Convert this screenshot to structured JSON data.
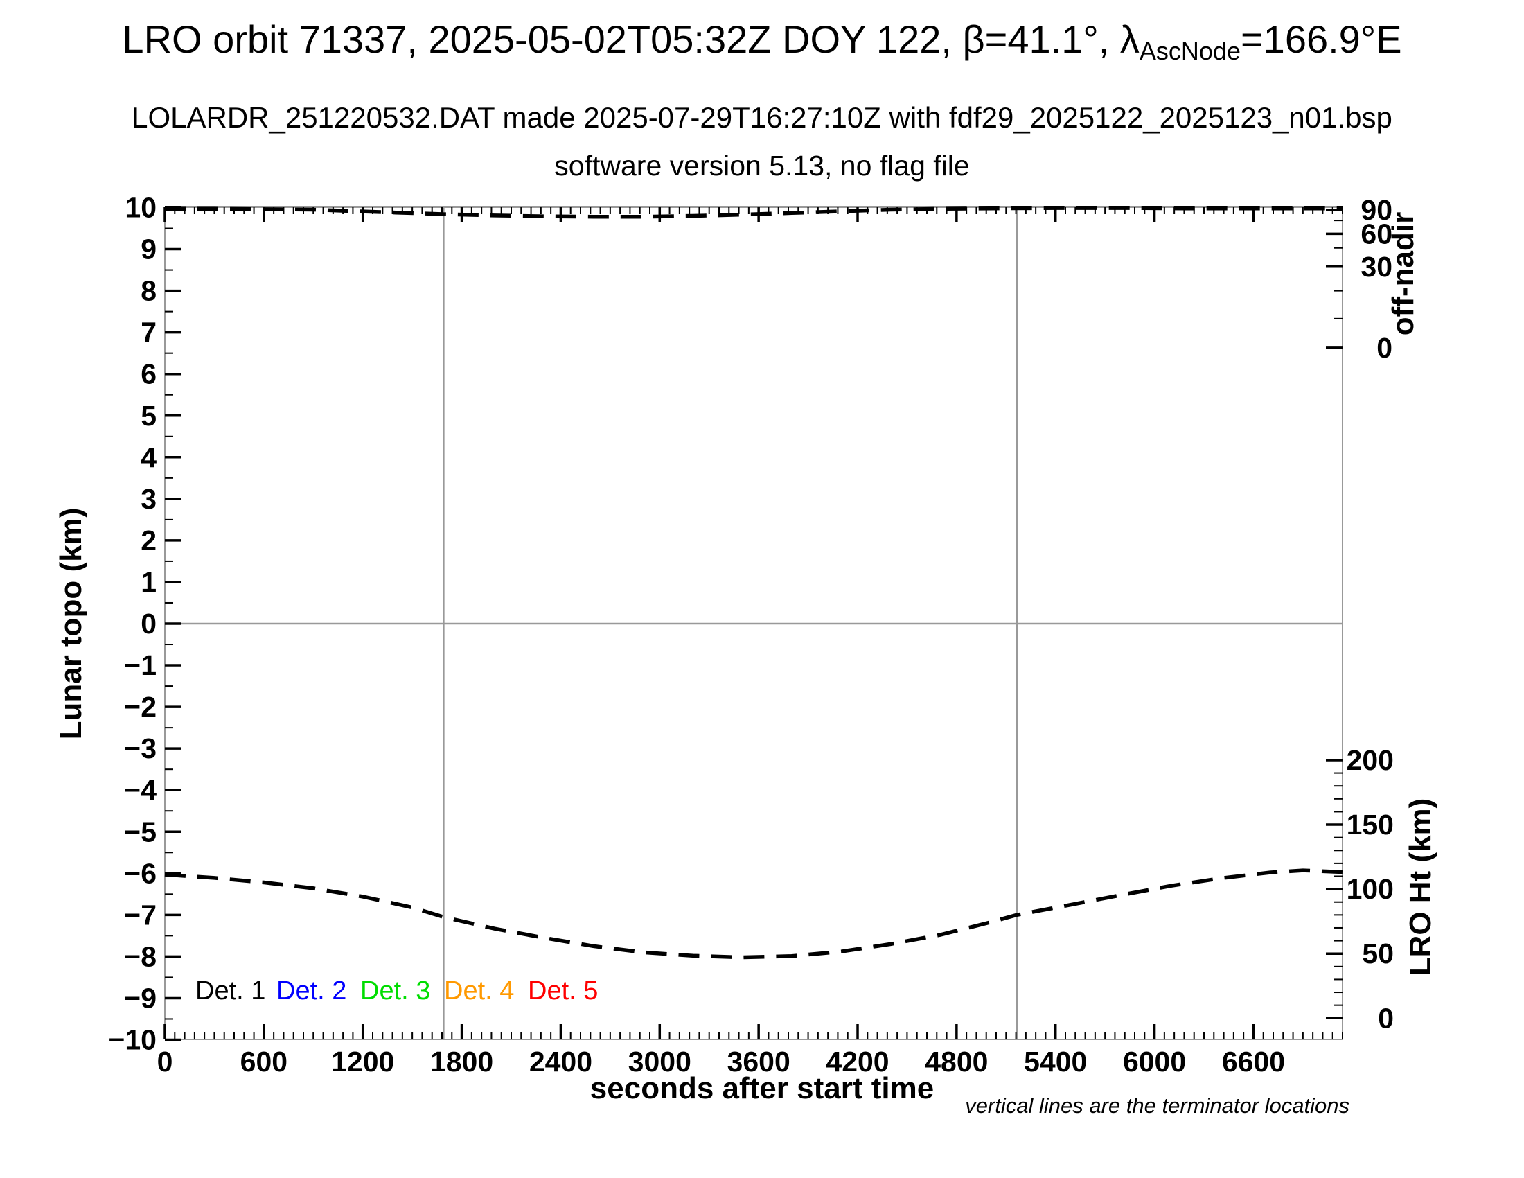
{
  "chart_data": {
    "type": "line",
    "title": {
      "pre": "LRO orbit 71337, 2025-05-02T05:32Z DOY 122, β=41.1°, λ",
      "sub": "AscNode",
      "post": "=166.9°E"
    },
    "subtitle": "LOLARDR_251220532.DAT made 2025-07-29T16:27:10Z with fdf29_2025122_2025123_n01.bsp",
    "subtitle2": "software version 5.13, no flag file",
    "xlabel": "seconds after start time",
    "note": "vertical lines are the terminator locations",
    "x_axis": {
      "min": 0,
      "max": 7140,
      "major": 600,
      "minor": 60,
      "last_labeled_tick": 6600
    },
    "left_axis": {
      "label": "Lunar topo (km)",
      "min": -10,
      "max": 10,
      "major": 1,
      "minor": 0.5
    },
    "right_axis_offnadir": {
      "label": "off-nadir",
      "ticks": [
        {
          "label": "90",
          "topo": 9.94
        },
        {
          "label": "60",
          "topo": 9.37
        },
        {
          "label": "30",
          "topo": 8.58
        },
        {
          "label": "0",
          "topo": 6.63
        }
      ],
      "minor_topo": [
        9.69,
        9.03,
        8.0,
        7.33
      ]
    },
    "right_axis_lro_ht": {
      "label": "LRO Ht (km)",
      "ticks": [
        {
          "label": "200",
          "topo": -3.28
        },
        {
          "label": "150",
          "topo": -4.83
        },
        {
          "label": "100",
          "topo": -6.38
        },
        {
          "label": "50",
          "topo": -7.93
        },
        {
          "label": "0",
          "topo": -9.48
        }
      ],
      "minor_step_topo": 0.31
    },
    "terminator_lines_sec": [
      1690,
      5165
    ],
    "grid_color": "#999999",
    "series": [
      {
        "name": "upper dashed curve (off-nadir trace)",
        "color": "#000000",
        "dash": [
          30,
          17
        ],
        "points_t_topo": [
          [
            0,
            9.97
          ],
          [
            300,
            9.97
          ],
          [
            600,
            9.96
          ],
          [
            900,
            9.95
          ],
          [
            1100,
            9.92
          ],
          [
            1400,
            9.88
          ],
          [
            1700,
            9.84
          ],
          [
            2000,
            9.81
          ],
          [
            2300,
            9.79
          ],
          [
            2600,
            9.78
          ],
          [
            2900,
            9.78
          ],
          [
            3200,
            9.8
          ],
          [
            3500,
            9.83
          ],
          [
            3800,
            9.87
          ],
          [
            4100,
            9.91
          ],
          [
            4400,
            9.95
          ],
          [
            4700,
            9.97
          ],
          [
            5000,
            9.98
          ],
          [
            5400,
            9.99
          ],
          [
            5800,
            9.99
          ],
          [
            6200,
            9.98
          ],
          [
            6600,
            9.98
          ],
          [
            7140,
            9.98
          ]
        ]
      },
      {
        "name": "lower dashed curve (LRO height, ~110 km down to ~48 km and back)",
        "color": "#000000",
        "dash": [
          30,
          17
        ],
        "points_t_topo": [
          [
            0,
            -6.03
          ],
          [
            300,
            -6.11
          ],
          [
            600,
            -6.22
          ],
          [
            900,
            -6.36
          ],
          [
            1200,
            -6.56
          ],
          [
            1500,
            -6.82
          ],
          [
            1690,
            -7.05
          ],
          [
            2000,
            -7.33
          ],
          [
            2300,
            -7.55
          ],
          [
            2600,
            -7.75
          ],
          [
            2900,
            -7.9
          ],
          [
            3200,
            -7.98
          ],
          [
            3500,
            -8.02
          ],
          [
            3800,
            -7.99
          ],
          [
            4100,
            -7.88
          ],
          [
            4400,
            -7.7
          ],
          [
            4700,
            -7.48
          ],
          [
            5000,
            -7.18
          ],
          [
            5165,
            -7.0
          ],
          [
            5500,
            -6.75
          ],
          [
            5800,
            -6.52
          ],
          [
            6100,
            -6.3
          ],
          [
            6400,
            -6.12
          ],
          [
            6700,
            -5.98
          ],
          [
            6900,
            -5.93
          ],
          [
            7140,
            -5.97
          ]
        ]
      }
    ],
    "legend": [
      {
        "label": "Det. 1",
        "color": "#000000"
      },
      {
        "label": "Det. 2",
        "color": "#0000ff"
      },
      {
        "label": "Det. 3",
        "color": "#00dd00"
      },
      {
        "label": "Det. 4",
        "color": "#ff9900"
      },
      {
        "label": "Det. 5",
        "color": "#ff0000"
      }
    ]
  }
}
